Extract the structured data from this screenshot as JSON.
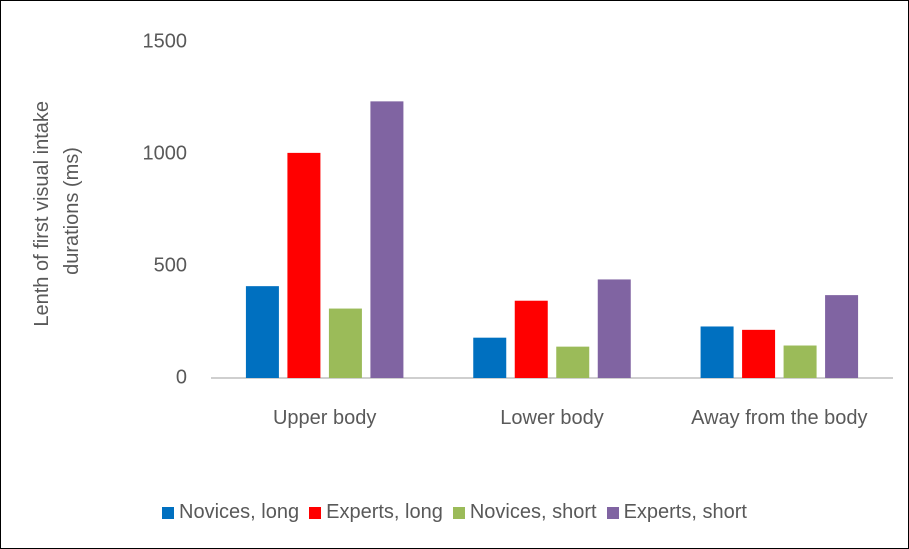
{
  "chart_data": {
    "type": "bar",
    "ylabel": [
      "Lenth of first visual intake",
      "durations (ms)"
    ],
    "categories": [
      "Upper body",
      "Lower body",
      "Away from the body"
    ],
    "series": [
      {
        "name": "Novices, long",
        "color": "#0070c0",
        "values": [
          410,
          180,
          230
        ]
      },
      {
        "name": "Experts, long",
        "color": "#ff0000",
        "values": [
          1005,
          345,
          215
        ]
      },
      {
        "name": "Novices, short",
        "color": "#9bbb59",
        "values": [
          310,
          140,
          145
        ]
      },
      {
        "name": "Experts, short",
        "color": "#8064a2",
        "values": [
          1235,
          440,
          370
        ]
      }
    ],
    "ylim": [
      0,
      1500
    ],
    "yticks": [
      0,
      500,
      1000,
      1500
    ],
    "grid": false,
    "legend": "bottom"
  }
}
